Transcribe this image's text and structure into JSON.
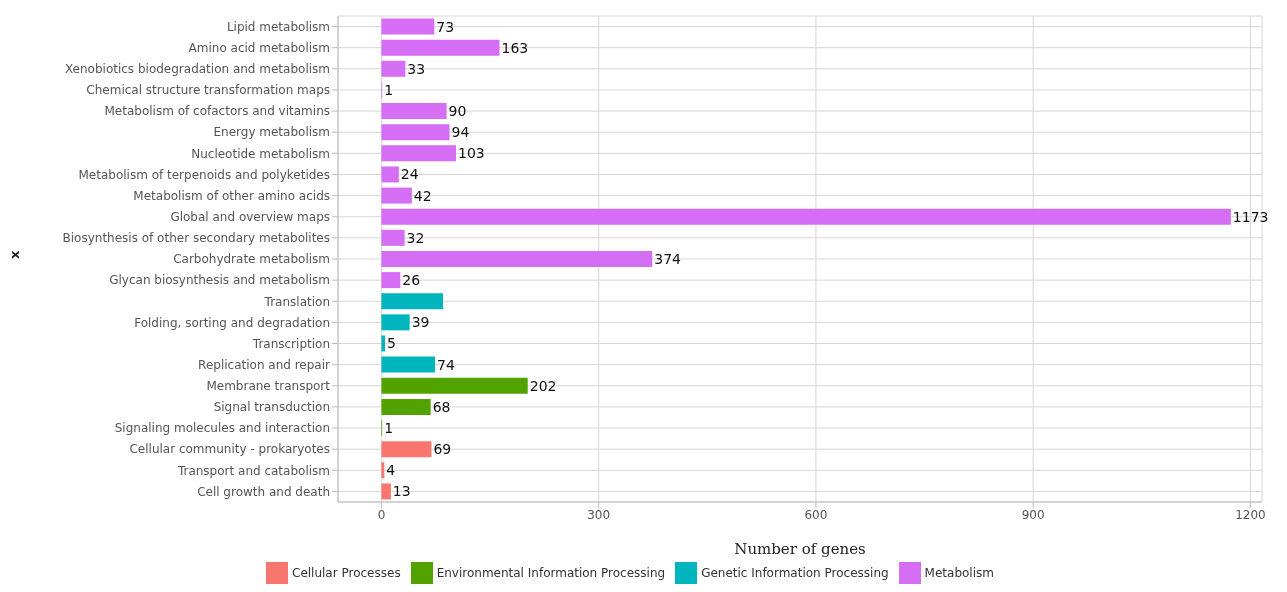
{
  "chart_data": {
    "type": "bar",
    "orientation": "horizontal",
    "stacked": true,
    "xlabel": "Number of genes",
    "ylabel": "x",
    "categories": [
      "Lipid metabolism",
      "Amino acid metabolism",
      "Xenobiotics biodegradation and metabolism",
      "Chemical structure transformation maps",
      "Metabolism of cofactors and vitamins",
      "Energy metabolism",
      "Nucleotide metabolism",
      "Metabolism of terpenoids and polyketides",
      "Metabolism of other amino acids",
      "Global and overview maps",
      "Biosynthesis of other secondary metabolites",
      "Carbohydrate metabolism",
      "Glycan biosynthesis and metabolism",
      "Translation",
      "Folding, sorting and degradation",
      "Transcription",
      "Replication and repair",
      "Membrane transport",
      "Signal transduction",
      "Signaling molecules and interaction",
      "Cellular community - prokaryotes",
      "Transport and catabolism",
      "Cell growth and death"
    ],
    "series": [
      {
        "name": "Cellular Processes",
        "color": "#f8766d",
        "values": [
          null,
          null,
          null,
          null,
          null,
          null,
          null,
          null,
          null,
          null,
          null,
          null,
          null,
          null,
          null,
          null,
          null,
          null,
          null,
          null,
          69,
          4,
          13
        ],
        "value_labels": [
          null,
          null,
          null,
          null,
          null,
          null,
          null,
          null,
          null,
          null,
          null,
          null,
          null,
          null,
          null,
          null,
          null,
          null,
          null,
          null,
          "69",
          "4",
          "13"
        ]
      },
      {
        "name": "Environmental Information Processing",
        "color": "#53a300",
        "values": [
          null,
          null,
          null,
          null,
          null,
          null,
          null,
          null,
          null,
          null,
          null,
          null,
          null,
          null,
          null,
          null,
          null,
          202,
          68,
          1,
          null,
          null,
          null
        ],
        "value_labels": [
          null,
          null,
          null,
          null,
          null,
          null,
          null,
          null,
          null,
          null,
          null,
          null,
          null,
          null,
          null,
          null,
          null,
          "202",
          "68",
          "1",
          null,
          null,
          null
        ]
      },
      {
        "name": "Genetic Information Processing",
        "color": "#00b5bd",
        "values": [
          null,
          null,
          null,
          null,
          null,
          null,
          null,
          null,
          null,
          null,
          null,
          null,
          null,
          85,
          39,
          5,
          74,
          null,
          null,
          null,
          null,
          null,
          null
        ],
        "value_labels": [
          null,
          null,
          null,
          null,
          null,
          null,
          null,
          null,
          null,
          null,
          null,
          null,
          null,
          null,
          "39",
          "5",
          "74",
          null,
          null,
          null,
          null,
          null,
          null
        ]
      },
      {
        "name": "Metabolism",
        "color": "#d56df5",
        "values": [
          73,
          163,
          33,
          1,
          90,
          94,
          103,
          24,
          42,
          1173,
          32,
          374,
          26,
          null,
          null,
          null,
          null,
          null,
          null,
          null,
          null,
          null,
          null
        ],
        "value_labels": [
          "73",
          "163",
          "33",
          "1",
          "90",
          "94",
          "103",
          "24",
          "42",
          "1173",
          "32",
          "374",
          "26",
          null,
          null,
          null,
          null,
          null,
          null,
          null,
          null,
          null,
          null
        ]
      }
    ],
    "xlim": [
      -60,
      1216
    ],
    "xticks": [
      0,
      300,
      600,
      900,
      1200
    ],
    "grid": true,
    "legend": "bottom"
  }
}
